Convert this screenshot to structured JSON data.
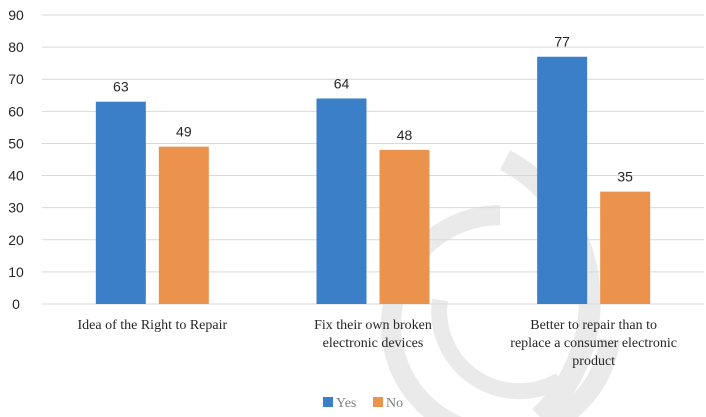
{
  "chart_data": {
    "type": "bar",
    "categories": [
      [
        "Idea of the Right to Repair"
      ],
      [
        "Fix their own broken",
        "electronic devices"
      ],
      [
        "Better to repair than to",
        "replace a consumer electronic",
        "product"
      ]
    ],
    "series": [
      {
        "name": "Yes",
        "color": "#3a7fc8",
        "values": [
          63,
          64,
          77
        ]
      },
      {
        "name": "No",
        "color": "#eb924c",
        "values": [
          49,
          48,
          35
        ]
      }
    ],
    "ylim": [
      0,
      90
    ],
    "yticks": [
      0,
      10,
      20,
      30,
      40,
      50,
      60,
      70,
      80,
      90
    ],
    "grid": true,
    "legend": "bottom",
    "watermark_color": "#eaeaea"
  }
}
